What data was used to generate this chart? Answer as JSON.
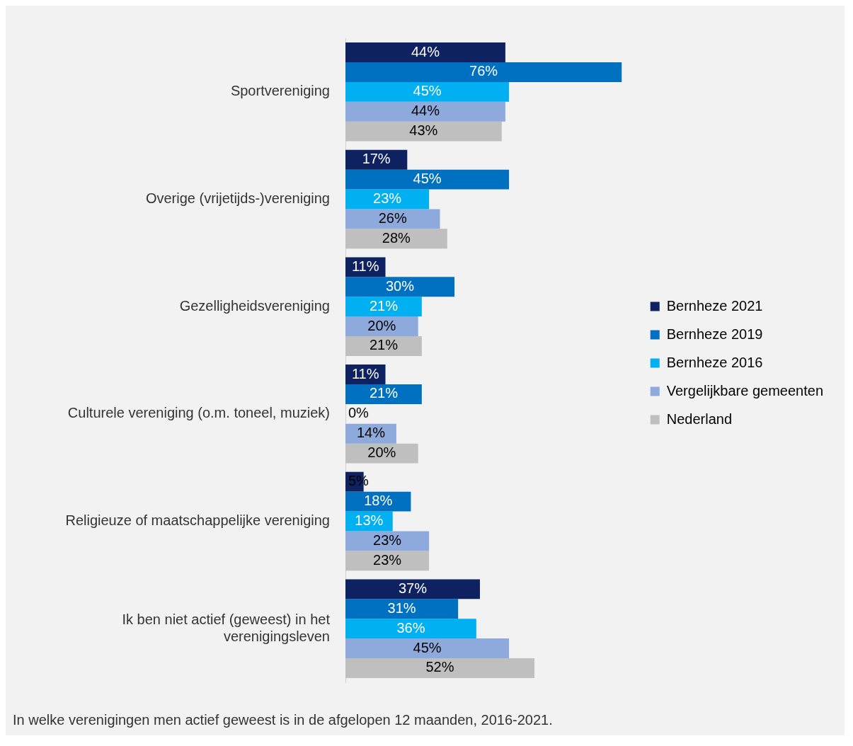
{
  "chart_data": {
    "type": "bar",
    "orientation": "horizontal",
    "categories": [
      "Sportvereniging",
      "Overige (vrijetijds-)vereniging",
      "Gezelligheidsvereniging",
      "Culturele vereniging (o.m. toneel, muziek)",
      "Religieuze of maatschappelijke vereniging",
      "Ik ben niet actief (geweest) in het verenigingsleven"
    ],
    "series": [
      {
        "name": "Bernheze 2021",
        "color": "#0e2160",
        "values": [
          44,
          17,
          11,
          11,
          5,
          37
        ],
        "value_labels": [
          "44%",
          "17%",
          "11%",
          "11%",
          "5%",
          "37%"
        ]
      },
      {
        "name": "Bernheze 2019",
        "color": "#0070c0",
        "values": [
          76,
          45,
          30,
          21,
          18,
          31
        ],
        "value_labels": [
          "76%",
          "45%",
          "30%",
          "21%",
          "18%",
          "31%"
        ]
      },
      {
        "name": "Bernheze 2016",
        "color": "#00b0f0",
        "values": [
          45,
          23,
          21,
          0,
          13,
          36
        ],
        "value_labels": [
          "45%",
          "23%",
          "21%",
          "0%",
          "13%",
          "36%"
        ]
      },
      {
        "name": "Vergelijkbare gemeenten",
        "color": "#8ea9db",
        "values": [
          44,
          26,
          20,
          14,
          23,
          45
        ],
        "value_labels": [
          "44%",
          "26%",
          "20%",
          "14%",
          "23%",
          "45%"
        ]
      },
      {
        "name": "Nederland",
        "color": "#bfbfbf",
        "values": [
          43,
          28,
          21,
          20,
          23,
          52
        ],
        "value_labels": [
          "43%",
          "28%",
          "21%",
          "20%",
          "23%",
          "52%"
        ]
      }
    ],
    "legend": "right",
    "tick_labels": "y",
    "annotations": [
      "In welke verenigingen men actief geweest is in de afgelopen 12 maanden, 2016-2021."
    ]
  }
}
